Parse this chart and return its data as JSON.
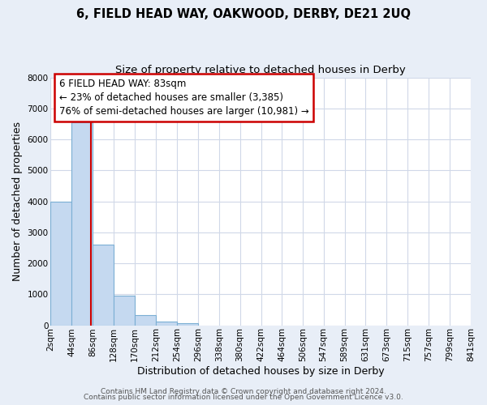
{
  "title": "6, FIELD HEAD WAY, OAKWOOD, DERBY, DE21 2UQ",
  "subtitle": "Size of property relative to detached houses in Derby",
  "xlabel": "Distribution of detached houses by size in Derby",
  "ylabel": "Number of detached properties",
  "bin_edges": [
    2,
    44,
    86,
    128,
    170,
    212,
    254,
    296,
    338,
    380,
    422,
    464,
    506,
    547,
    589,
    631,
    673,
    715,
    757,
    799,
    841
  ],
  "bin_labels": [
    "2sqm",
    "44sqm",
    "86sqm",
    "128sqm",
    "170sqm",
    "212sqm",
    "254sqm",
    "296sqm",
    "338sqm",
    "380sqm",
    "422sqm",
    "464sqm",
    "506sqm",
    "547sqm",
    "589sqm",
    "631sqm",
    "673sqm",
    "715sqm",
    "757sqm",
    "799sqm",
    "841sqm"
  ],
  "bar_heights": [
    4000,
    6550,
    2600,
    960,
    320,
    130,
    70,
    0,
    0,
    0,
    0,
    0,
    0,
    0,
    0,
    0,
    0,
    0,
    0,
    0
  ],
  "bar_color": "#c5d9f0",
  "bar_edge_color": "#7bafd4",
  "property_line_x": 83,
  "property_line_color": "#cc0000",
  "annotation_line1": "6 FIELD HEAD WAY: 83sqm",
  "annotation_line2": "← 23% of detached houses are smaller (3,385)",
  "annotation_line3": "76% of semi-detached houses are larger (10,981) →",
  "ylim": [
    0,
    8000
  ],
  "yticks": [
    0,
    1000,
    2000,
    3000,
    4000,
    5000,
    6000,
    7000,
    8000
  ],
  "footer_line1": "Contains HM Land Registry data © Crown copyright and database right 2024.",
  "footer_line2": "Contains public sector information licensed under the Open Government Licence v3.0.",
  "bg_color": "#e8eef7",
  "plot_bg_color": "#ffffff",
  "grid_color": "#d0d8e8",
  "title_fontsize": 10.5,
  "subtitle_fontsize": 9.5,
  "axis_label_fontsize": 9,
  "tick_fontsize": 7.5,
  "footer_fontsize": 6.5,
  "annot_fontsize": 8.5
}
